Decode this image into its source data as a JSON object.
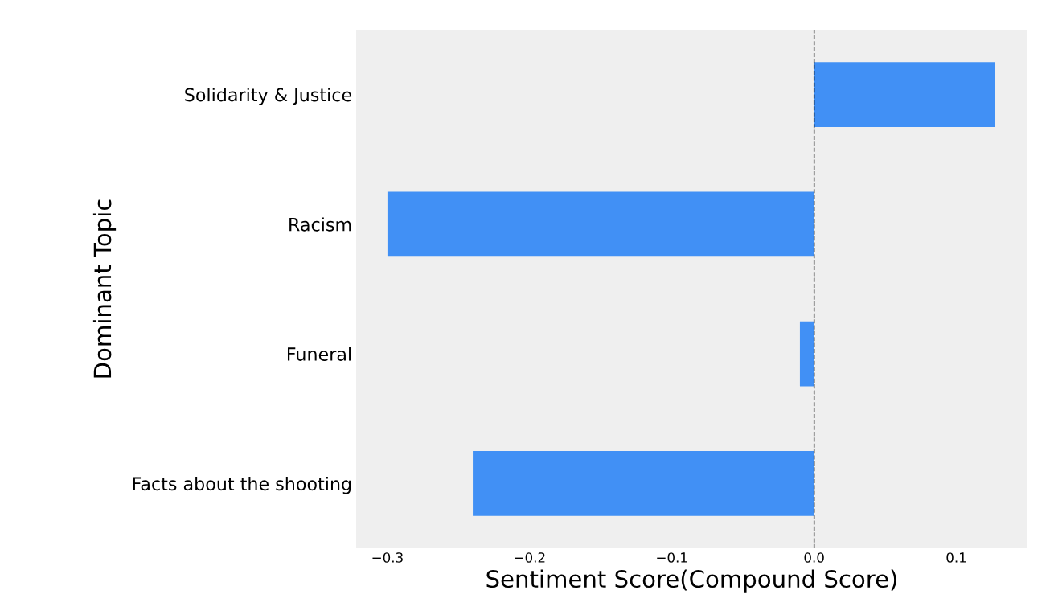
{
  "chart_data": {
    "type": "bar",
    "orientation": "horizontal",
    "categories": [
      "Solidarity & Justice",
      "Racism",
      "Funeral",
      "Facts about the shooting"
    ],
    "values": [
      0.127,
      -0.3,
      -0.01,
      -0.24
    ],
    "color": "#4190f5",
    "xlabel": "Sentiment Score(Compound Score)",
    "ylabel": "Dominant Topic",
    "xlim": [
      -0.322,
      0.15
    ],
    "xticks": [
      {
        "value": -0.3,
        "label": "−0.3"
      },
      {
        "value": -0.2,
        "label": "−0.2"
      },
      {
        "value": -0.1,
        "label": "−0.1"
      },
      {
        "value": 0.0,
        "label": "0.0"
      },
      {
        "value": 0.1,
        "label": "0.1"
      }
    ],
    "ref_lines": [
      {
        "axis": "x",
        "value": 0,
        "color": "#000000",
        "line_style": "dashed"
      }
    ],
    "grid": false,
    "legend": false
  }
}
